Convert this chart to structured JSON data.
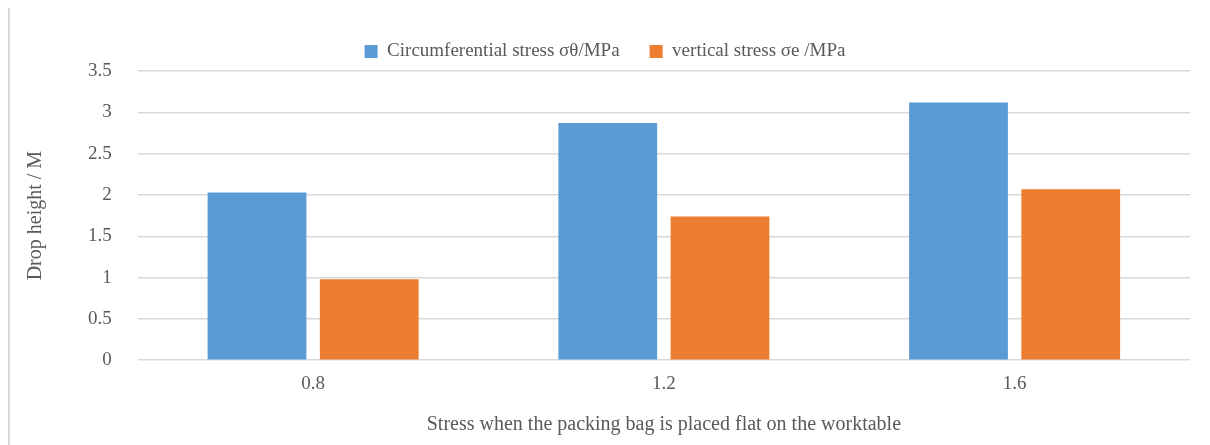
{
  "chart_data": {
    "type": "bar",
    "xlabel": "Stress when the packing bag is placed flat on the worktable",
    "ylabel": "Drop height / M",
    "categories": [
      "0.8",
      "1.2",
      "1.6"
    ],
    "series": [
      {
        "name": "Circumferential stress σθ/MPa",
        "color": "#5b9bd5",
        "values": [
          2.03,
          2.87,
          3.12
        ]
      },
      {
        "name": "vertical stress σe /MPa",
        "color": "#ed7d31",
        "values": [
          0.98,
          1.74,
          2.07
        ]
      }
    ],
    "ylim": [
      0,
      3.5
    ],
    "yticks": [
      0,
      0.5,
      1,
      1.5,
      2,
      2.5,
      3,
      3.5
    ],
    "grid": "y",
    "legend": "top"
  }
}
